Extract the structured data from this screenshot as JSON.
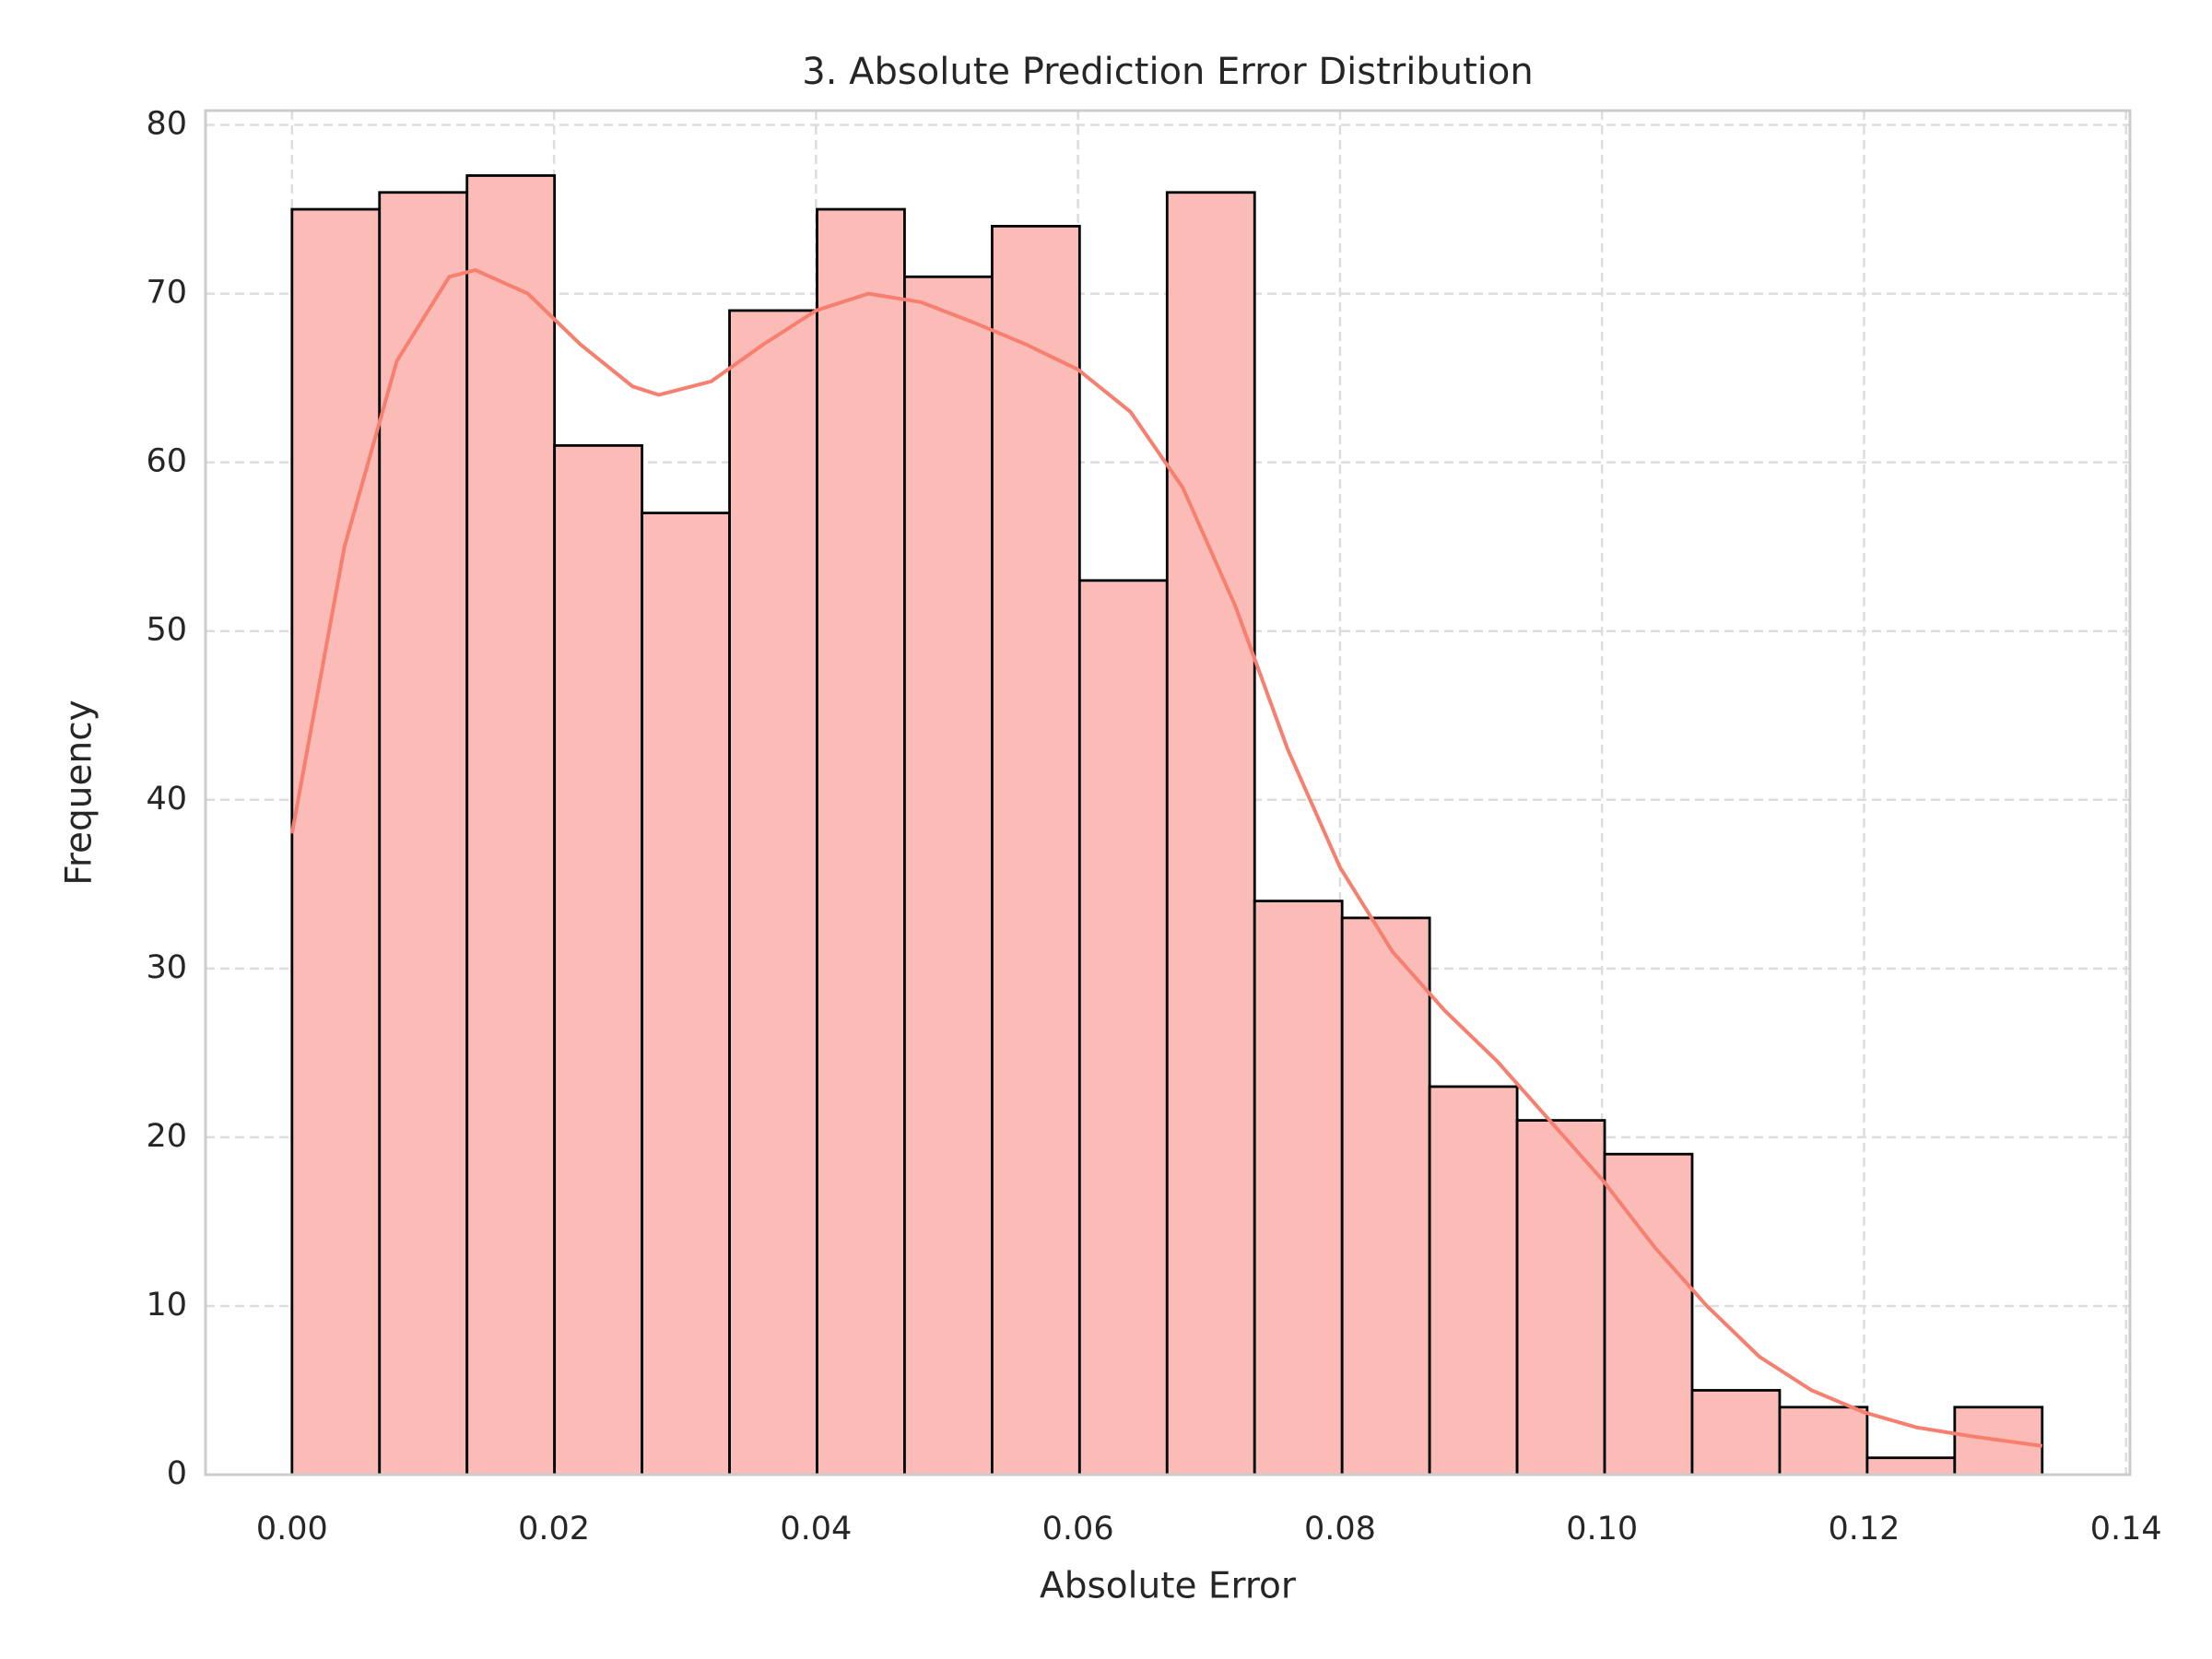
{
  "chart_data": {
    "type": "histogram",
    "title": "3. Absolute Prediction Error Distribution",
    "xlabel": "Absolute Error",
    "ylabel": "Frequency",
    "bins": [
      0,
      0.00668,
      0.01336,
      0.02004,
      0.02672,
      0.0334,
      0.04008,
      0.04676,
      0.05344,
      0.06012,
      0.0668,
      0.07348,
      0.08016,
      0.08684,
      0.09352,
      0.1002,
      0.10688,
      0.11356,
      0.12024,
      0.12692,
      0.1336
    ],
    "values": [
      75,
      76,
      77,
      61,
      57,
      69,
      75,
      71,
      74,
      53,
      76,
      34,
      33,
      23,
      21,
      19,
      5,
      4,
      1,
      4
    ],
    "color": "#fbbcb7",
    "edgecolor": "#000000",
    "kde": {
      "color": "#f77f70",
      "x": [
        0,
        0.004,
        0.008,
        0.012,
        0.014,
        0.018,
        0.022,
        0.026,
        0.028,
        0.032,
        0.036,
        0.04,
        0.044,
        0.048,
        0.052,
        0.056,
        0.06,
        0.064,
        0.068,
        0.072,
        0.076,
        0.08,
        0.084,
        0.088,
        0.092,
        0.096,
        0.1,
        0.104,
        0.108,
        0.112,
        0.116,
        0.12,
        0.124,
        0.128,
        0.1336
      ],
      "y": [
        38,
        55,
        66,
        71,
        71.4,
        70,
        67,
        64.5,
        64,
        64.8,
        67,
        69,
        70,
        69.5,
        68.3,
        67,
        65.5,
        63,
        58.5,
        51.5,
        43,
        36,
        31,
        27.5,
        24.5,
        21,
        17.5,
        13.5,
        10,
        7,
        5,
        3.7,
        2.8,
        2.3,
        1.7
      ]
    },
    "xlim": [
      -0.0066,
      0.1403
    ],
    "ylim": [
      0,
      80.85
    ],
    "xticks": [
      {
        "value": 0,
        "label": "0.00"
      },
      {
        "value": 0.02,
        "label": "0.02"
      },
      {
        "value": 0.04,
        "label": "0.04"
      },
      {
        "value": 0.06,
        "label": "0.06"
      },
      {
        "value": 0.08,
        "label": "0.08"
      },
      {
        "value": 0.1,
        "label": "0.10"
      },
      {
        "value": 0.12,
        "label": "0.12"
      },
      {
        "value": 0.14,
        "label": "0.14"
      }
    ],
    "yticks": [
      0,
      10,
      20,
      30,
      40,
      50,
      60,
      70,
      80
    ],
    "grid": true
  }
}
